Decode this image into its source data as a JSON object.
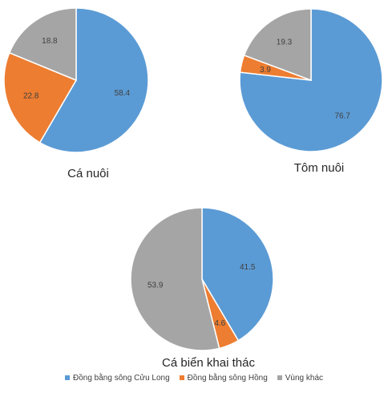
{
  "chart_data": [
    {
      "type": "pie",
      "title": "Cá nuôi",
      "categories": [
        "Đồng bằng sông Cửu Long",
        "Đồng bằng sông Hồng",
        "Vùng khác"
      ],
      "values": [
        58.4,
        22.8,
        18.8
      ]
    },
    {
      "type": "pie",
      "title": "Tôm nuôi",
      "categories": [
        "Đồng bằng sông Cửu Long",
        "Đồng bằng sông Hồng",
        "Vùng khác"
      ],
      "values": [
        76.7,
        3.9,
        19.3
      ]
    },
    {
      "type": "pie",
      "title": "Cá biển khai thác",
      "categories": [
        "Đồng bằng sông Cửu Long",
        "Đồng bằng sông Hồng",
        "Vùng khác"
      ],
      "values": [
        41.5,
        4.6,
        53.9
      ]
    }
  ],
  "legend": {
    "placement": "bottom",
    "items": [
      {
        "label": "Đồng bằng sông Cửu Long",
        "color": "#5b9bd5"
      },
      {
        "label": "Đồng bằng sông Hồng",
        "color": "#ed7d31"
      },
      {
        "label": "Vùng khác",
        "color": "#a5a5a5"
      }
    ]
  }
}
